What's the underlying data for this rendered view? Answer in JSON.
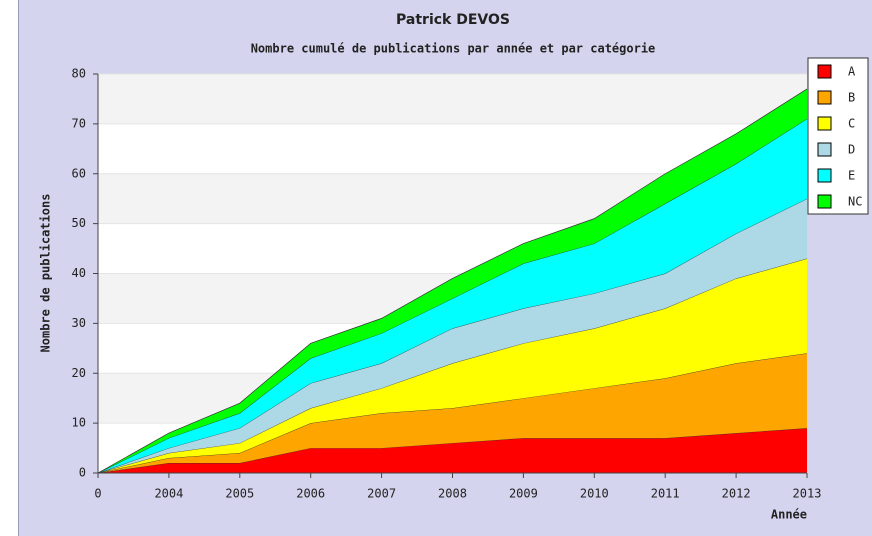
{
  "chart_data": {
    "type": "stacked_area",
    "title": "Patrick DEVOS",
    "subtitle": "Nombre cumulé de publications par année et par catégorie",
    "x_label": "Année",
    "y_label": "Nombre de publications",
    "categories": [
      "0",
      "2004",
      "2005",
      "2006",
      "2007",
      "2008",
      "2009",
      "2010",
      "2011",
      "2012",
      "2013"
    ],
    "ylim": [
      0,
      80
    ],
    "yticks": [
      0,
      10,
      20,
      30,
      40,
      50,
      60,
      70,
      80
    ],
    "grid": true,
    "legend": "right",
    "series": [
      {
        "name": "A",
        "color": "#ff0000",
        "values": [
          0,
          2,
          2,
          5,
          5,
          6,
          7,
          7,
          7,
          8,
          9
        ]
      },
      {
        "name": "B",
        "color": "#ffa500",
        "values": [
          0,
          1,
          2,
          5,
          7,
          7,
          8,
          10,
          12,
          14,
          15
        ]
      },
      {
        "name": "C",
        "color": "#ffff00",
        "values": [
          0,
          1,
          2,
          3,
          5,
          9,
          11,
          12,
          14,
          17,
          19
        ]
      },
      {
        "name": "D",
        "color": "#add8e6",
        "values": [
          0,
          1,
          3,
          5,
          5,
          7,
          7,
          7,
          7,
          9,
          12
        ]
      },
      {
        "name": "E",
        "color": "#00ffff",
        "values": [
          0,
          2,
          3,
          5,
          6,
          6,
          9,
          10,
          14,
          14,
          16
        ]
      },
      {
        "name": "NC",
        "color": "#00ff00",
        "values": [
          0,
          1,
          2,
          3,
          3,
          4,
          4,
          5,
          6,
          6,
          6
        ]
      }
    ]
  }
}
